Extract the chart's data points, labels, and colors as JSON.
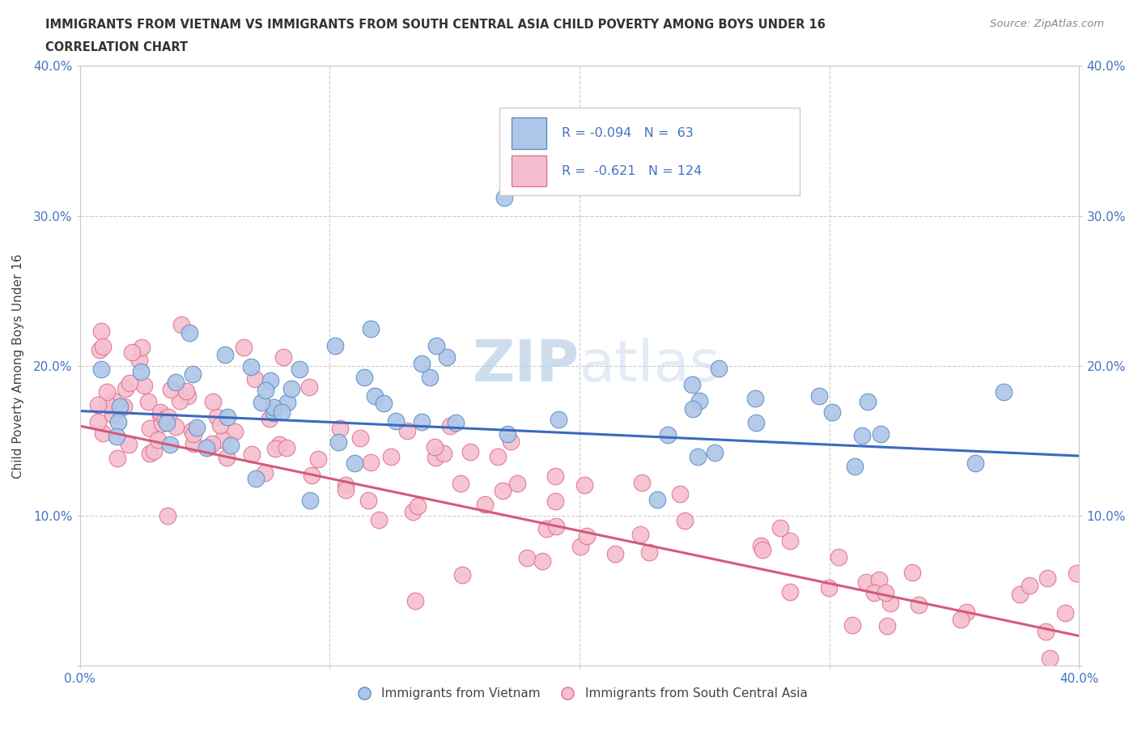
{
  "title_line1": "IMMIGRANTS FROM VIETNAM VS IMMIGRANTS FROM SOUTH CENTRAL ASIA CHILD POVERTY AMONG BOYS UNDER 16",
  "title_line2": "CORRELATION CHART",
  "source": "Source: ZipAtlas.com",
  "ylabel": "Child Poverty Among Boys Under 16",
  "xlim": [
    0.0,
    0.4
  ],
  "ylim": [
    0.0,
    0.4
  ],
  "vietnam_color": "#aec6e8",
  "vietnam_edge_color": "#5b8ec4",
  "sca_color": "#f5bece",
  "sca_edge_color": "#e07090",
  "trend_vietnam_color": "#3a6abf",
  "trend_sca_color": "#d45a7a",
  "R_vietnam": -0.094,
  "N_vietnam": 63,
  "R_sca": -0.621,
  "N_sca": 124,
  "background_color": "#ffffff",
  "grid_color": "#cccccc",
  "tick_color": "#4472c4",
  "title_color": "#333333",
  "source_color": "#888888",
  "watermark_color": "#d8e4f0",
  "watermark_alpha": 0.6
}
